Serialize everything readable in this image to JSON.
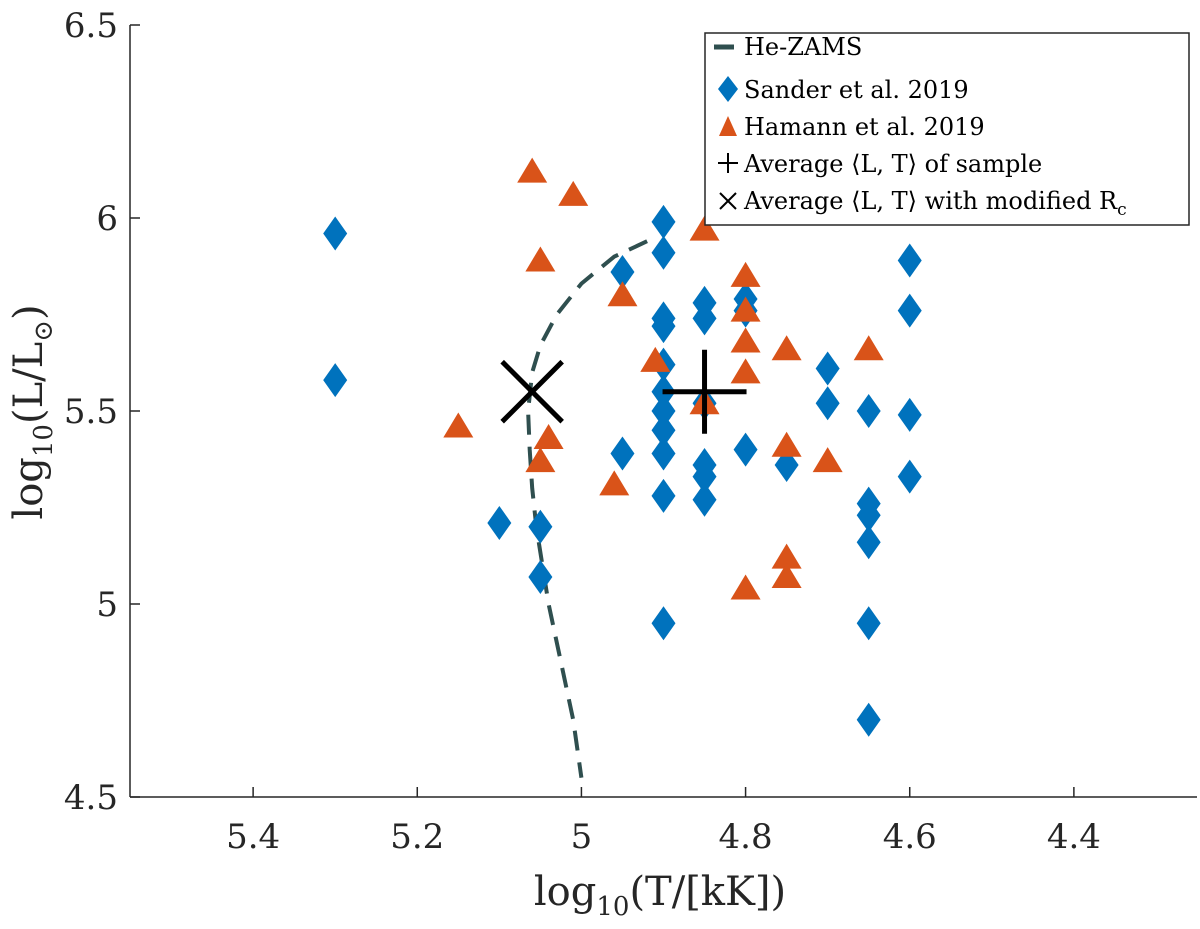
{
  "chart_data": {
    "type": "scatter",
    "xlabel_parts": [
      "log",
      "10",
      "(T/[kK])"
    ],
    "ylabel_parts": [
      "log",
      "10",
      "(L/L",
      "⊙",
      ")"
    ],
    "xlim": [
      5.55,
      4.25
    ],
    "ylim": [
      4.5,
      6.5
    ],
    "x_ticks": [
      5.4,
      5.2,
      5.0,
      4.8,
      4.6,
      4.4
    ],
    "x_tick_labels": [
      "5.4",
      "5.2",
      "5",
      "4.8",
      "4.6",
      "4.4"
    ],
    "y_ticks": [
      4.5,
      5.0,
      5.5,
      6.0,
      6.5
    ],
    "y_tick_labels": [
      "4.5",
      "5",
      "5.5",
      "6",
      "6.5"
    ],
    "legend": {
      "location": "top-right",
      "entries": [
        {
          "key": "zams",
          "marker": "dashed-line",
          "label": "He-ZAMS"
        },
        {
          "key": "sander",
          "marker": "diamond",
          "label": "Sander et al. 2019"
        },
        {
          "key": "hamann",
          "marker": "triangle",
          "label": "Hamann et al. 2019"
        },
        {
          "key": "avg",
          "marker": "+",
          "label": "Average ⟨L, T⟩ of sample"
        },
        {
          "key": "avg_mod",
          "marker": "×",
          "label": "Average ⟨L, T⟩ with modified R",
          "label_sub": "c"
        }
      ]
    },
    "colors": {
      "zams": "#2f4f4f",
      "sander": "#0072bd",
      "hamann": "#d95319",
      "average": "#000000"
    },
    "series": [
      {
        "name": "He-ZAMS",
        "type": "line",
        "x": [
          4.92,
          4.96,
          5.0,
          5.03,
          5.05,
          5.06,
          5.065,
          5.063,
          5.06,
          5.055,
          5.04,
          5.025,
          5.01,
          5.0
        ],
        "y": [
          5.94,
          5.9,
          5.83,
          5.75,
          5.67,
          5.6,
          5.5,
          5.4,
          5.3,
          5.2,
          5.0,
          4.85,
          4.7,
          4.55
        ]
      },
      {
        "name": "Sander et al. 2019",
        "type": "scatter",
        "x": [
          5.3,
          5.3,
          5.1,
          5.05,
          5.05,
          4.95,
          4.95,
          4.9,
          4.9,
          4.9,
          4.9,
          4.9,
          4.9,
          4.9,
          4.9,
          4.9,
          4.9,
          4.9,
          4.85,
          4.85,
          4.85,
          4.85,
          4.85,
          4.85,
          4.8,
          4.8,
          4.8,
          4.75,
          4.7,
          4.7,
          4.65,
          4.65,
          4.65,
          4.65,
          4.65,
          4.65,
          4.6,
          4.6,
          4.6,
          4.6
        ],
        "y": [
          5.96,
          5.58,
          5.21,
          5.2,
          5.07,
          5.86,
          5.39,
          5.99,
          5.91,
          5.74,
          5.72,
          5.62,
          5.55,
          5.45,
          5.39,
          5.28,
          4.95,
          5.5,
          5.78,
          5.74,
          5.36,
          5.33,
          5.27,
          5.52,
          5.79,
          5.76,
          5.4,
          5.36,
          5.61,
          5.52,
          5.5,
          5.26,
          5.23,
          5.16,
          4.95,
          4.7,
          5.89,
          5.76,
          5.49,
          5.33
        ]
      },
      {
        "name": "Hamann et al. 2019",
        "type": "scatter",
        "x": [
          5.15,
          5.06,
          5.05,
          5.05,
          5.04,
          5.01,
          4.96,
          4.95,
          4.91,
          4.85,
          4.85,
          4.8,
          4.8,
          4.8,
          4.8,
          4.8,
          4.75,
          4.75,
          4.75,
          4.75,
          4.7,
          4.65
        ],
        "y": [
          5.46,
          6.12,
          5.89,
          5.37,
          5.43,
          6.06,
          5.31,
          5.8,
          5.63,
          5.97,
          5.52,
          5.85,
          5.76,
          5.68,
          5.6,
          5.04,
          5.66,
          5.41,
          5.12,
          5.07,
          5.37,
          5.66
        ]
      },
      {
        "name": "Average ⟨L, T⟩ of sample",
        "type": "marker-plus",
        "x": [
          4.85
        ],
        "y": [
          5.55
        ]
      },
      {
        "name": "Average ⟨L, T⟩ with modified Rc",
        "type": "marker-x",
        "x": [
          5.06
        ],
        "y": [
          5.55
        ]
      }
    ]
  }
}
